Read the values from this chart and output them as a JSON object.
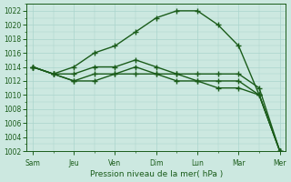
{
  "xlabel": "Pression niveau de la mer( hPa )",
  "ylim": [
    1002,
    1023
  ],
  "yticks": [
    1002,
    1004,
    1006,
    1008,
    1010,
    1012,
    1014,
    1016,
    1018,
    1020,
    1022
  ],
  "x_day_labels": [
    "Sam",
    "Jeu",
    "Ven",
    "Dim",
    "Lun",
    "Mar",
    "Mer"
  ],
  "x_day_positions": [
    0,
    2,
    4,
    6,
    8,
    10,
    12
  ],
  "background_color": "#cce8e0",
  "grid_color": "#aad4cc",
  "line_color": "#1a5c1a",
  "series": [
    [
      1014,
      1013,
      1014,
      1016,
      1017,
      1019,
      1021,
      1022,
      1022,
      1020,
      1017,
      1010,
      1002
    ],
    [
      1014,
      1013,
      1013,
      1014,
      1014,
      1015,
      1014,
      1013,
      1013,
      1013,
      1013,
      1011,
      1002
    ],
    [
      1014,
      1013,
      1012,
      1013,
      1013,
      1014,
      1013,
      1013,
      1012,
      1012,
      1012,
      1010,
      1002
    ],
    [
      1014,
      1013,
      1012,
      1012,
      1013,
      1013,
      1013,
      1012,
      1012,
      1011,
      1011,
      1010,
      1002
    ]
  ],
  "n_points": 13
}
